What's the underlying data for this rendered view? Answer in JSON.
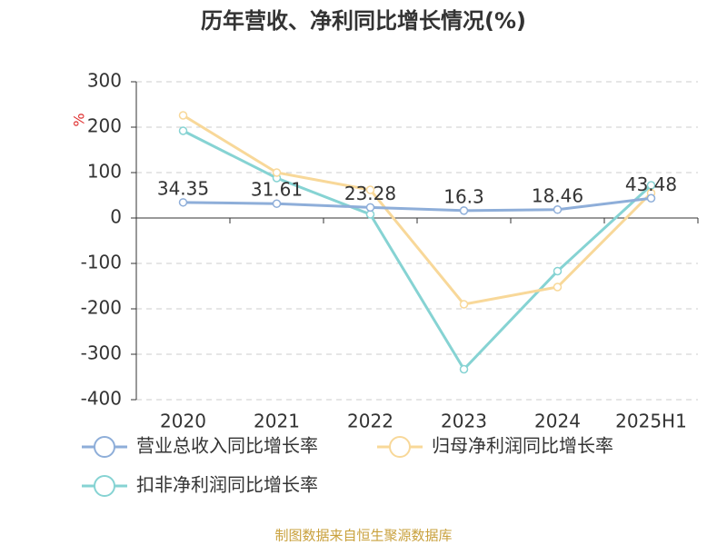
{
  "chart_data": {
    "type": "line",
    "title": "历年营收、净利同比增长情况(%)",
    "y_label": "%",
    "categories": [
      "2020",
      "2021",
      "2022",
      "2023",
      "2024",
      "2025H1"
    ],
    "series": [
      {
        "name": "营业总收入同比增长率",
        "color": "#8eaed9",
        "values": [
          34.35,
          31.61,
          23.28,
          16.3,
          18.46,
          43.48
        ],
        "show_labels": true
      },
      {
        "name": "归母净利润同比增长率",
        "color": "#f8d899",
        "values": [
          226,
          100,
          62,
          -190,
          -152,
          55
        ]
      },
      {
        "name": "扣非净利润同比增长率",
        "color": "#86d3d3",
        "values": [
          192,
          88,
          8,
          -333,
          -117,
          72
        ]
      }
    ],
    "ylim": [
      -400,
      300
    ],
    "yticks": [
      300,
      200,
      100,
      0,
      -100,
      -200,
      -300,
      -400
    ],
    "grid": true,
    "source": "制图数据来自恒生聚源数据库"
  }
}
